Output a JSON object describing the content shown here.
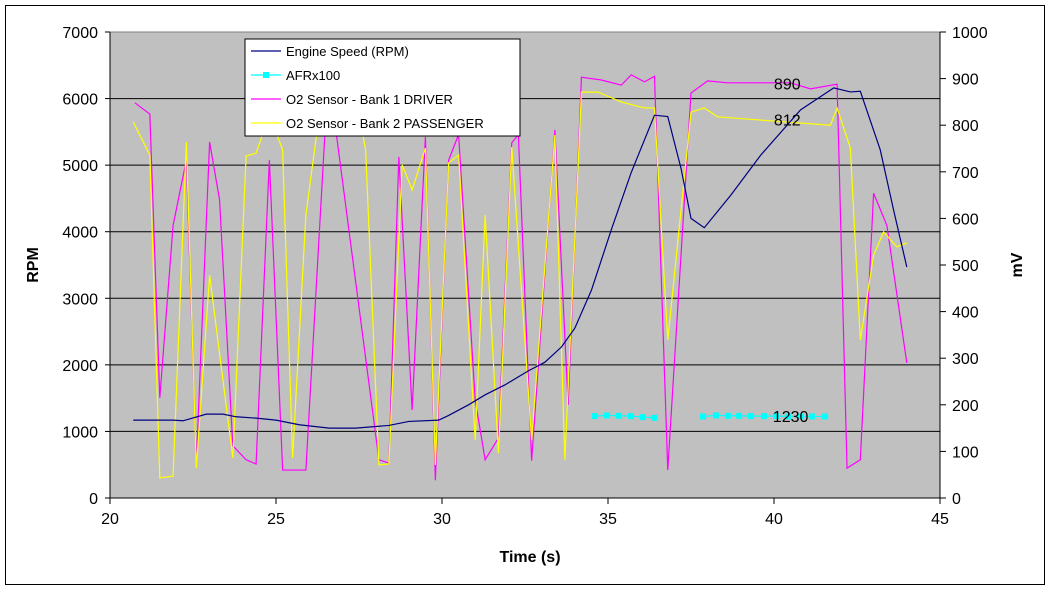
{
  "chart_data": {
    "type": "line",
    "title": "",
    "xlabel": "Time (s)",
    "ylabel": "RPM",
    "y2label": "mV",
    "xlim": [
      20,
      45
    ],
    "ylim": [
      0,
      7000
    ],
    "y2lim": [
      0,
      1000
    ],
    "xticks": [
      "20",
      "25",
      "30",
      "35",
      "40",
      "45"
    ],
    "yticks": [
      "0",
      "1000",
      "2000",
      "3000",
      "4000",
      "5000",
      "6000",
      "7000"
    ],
    "y2ticks": [
      "0",
      "100",
      "200",
      "300",
      "400",
      "500",
      "600",
      "700",
      "800",
      "900",
      "1000"
    ],
    "grid": "horizontal",
    "legend_position": "top-left",
    "plot_background": "#C0C0C0",
    "series": [
      {
        "name": "Engine Speed (RPM)",
        "axis": "left",
        "color": "#000080",
        "marker": false,
        "x": [
          20.7,
          21.9,
          22.2,
          22.9,
          23.4,
          23.8,
          24.4,
          25.0,
          25.7,
          26.6,
          27.4,
          28.4,
          29.0,
          29.9,
          30.2,
          30.8,
          31.3,
          31.9,
          32.6,
          33.1,
          33.6,
          34.0,
          34.5,
          35.1,
          35.7,
          36.4,
          36.8,
          37.2,
          37.5,
          37.9,
          38.7,
          39.6,
          40.8,
          41.8,
          42.3,
          42.6,
          43.2,
          43.6,
          44.0
        ],
        "y": [
          1170,
          1170,
          1160,
          1260,
          1260,
          1220,
          1200,
          1170,
          1100,
          1050,
          1050,
          1090,
          1150,
          1170,
          1240,
          1400,
          1550,
          1700,
          1910,
          2040,
          2270,
          2550,
          3120,
          4030,
          4890,
          5750,
          5730,
          4950,
          4200,
          4060,
          4550,
          5150,
          5830,
          6160,
          6100,
          6110,
          5230,
          4330,
          3470
        ]
      },
      {
        "name": "AFRx100",
        "axis": "left",
        "color": "#00FFFF",
        "marker": true,
        "segments": [
          {
            "x": [
              34.6,
              34.96,
              35.33,
              35.69,
              36.05,
              36.4
            ],
            "y": [
              1230,
              1240,
              1235,
              1230,
              1215,
              1205
            ]
          },
          {
            "x": [
              37.86,
              38.25,
              38.61,
              38.95,
              39.3,
              39.7,
              40.06,
              40.42,
              40.81,
              41.14,
              41.54
            ],
            "y": [
              1225,
              1240,
              1235,
              1235,
              1230,
              1230,
              1230,
              1225,
              1225,
              1225,
              1225
            ]
          }
        ]
      },
      {
        "name": "O2 Sensor - Bank 1 DRIVER",
        "axis": "right",
        "color": "#FF00FF",
        "marker": false,
        "x": [
          20.75,
          21.2,
          21.5,
          21.9,
          22.3,
          22.6,
          23.0,
          23.3,
          23.7,
          24.1,
          24.4,
          24.8,
          25.2,
          25.9,
          26.5,
          26.6,
          28.1,
          28.4,
          28.7,
          29.1,
          29.5,
          29.8,
          30.2,
          30.5,
          31.0,
          31.3,
          31.7,
          32.1,
          32.3,
          32.7,
          33.4,
          33.8,
          34.2,
          34.8,
          35.4,
          35.7,
          36.1,
          36.4,
          36.8,
          37.5,
          38.0,
          38.6,
          40.5,
          41.1,
          41.9,
          42.2,
          42.6,
          43.0,
          43.4,
          44.0
        ],
        "y": [
          848,
          824,
          215,
          585,
          725,
          75,
          764,
          640,
          112,
          82,
          73,
          725,
          60,
          60,
          815,
          900,
          82,
          75,
          732,
          189,
          775,
          38,
          725,
          780,
          210,
          82,
          129,
          762,
          780,
          80,
          790,
          200,
          903,
          897,
          886,
          908,
          893,
          905,
          60,
          869,
          895,
          891,
          891,
          878,
          888,
          64,
          82,
          654,
          585,
          290
        ]
      },
      {
        "name": "O2 Sensor - Bank 2 PASSENGER",
        "axis": "right",
        "color": "#FFFF00",
        "marker": false,
        "x": [
          20.7,
          21.2,
          21.5,
          21.9,
          22.3,
          22.6,
          23.0,
          23.7,
          24.1,
          24.4,
          24.8,
          25.2,
          25.5,
          25.9,
          26.3,
          27.5,
          27.7,
          28.1,
          28.4,
          28.8,
          29.1,
          29.5,
          29.8,
          30.2,
          30.5,
          31.0,
          31.3,
          31.7,
          32.1,
          32.7,
          33.4,
          33.7,
          34.2,
          34.7,
          35.4,
          36.1,
          36.4,
          36.8,
          37.5,
          37.9,
          38.3,
          39.6,
          41.7,
          41.9,
          42.3,
          42.6,
          43.0,
          43.3,
          43.7,
          44.0
        ],
        "y": [
          807,
          736,
          43,
          47,
          764,
          64,
          478,
          86,
          734,
          740,
          822,
          747,
          86,
          607,
          822,
          822,
          747,
          71,
          73,
          715,
          661,
          751,
          71,
          719,
          736,
          124,
          607,
          97,
          753,
          124,
          779,
          82,
          871,
          871,
          850,
          837,
          837,
          339,
          828,
          837,
          818,
          811,
          800,
          837,
          751,
          339,
          521,
          571,
          539,
          547
        ]
      }
    ],
    "annotations": [
      {
        "text": "890",
        "x": 40.4,
        "axis": "right",
        "y": 890
      },
      {
        "text": "812",
        "x": 40.4,
        "axis": "right",
        "y": 812
      },
      {
        "text": "1230",
        "x": 40.5,
        "axis": "left",
        "y": 1230
      }
    ]
  }
}
